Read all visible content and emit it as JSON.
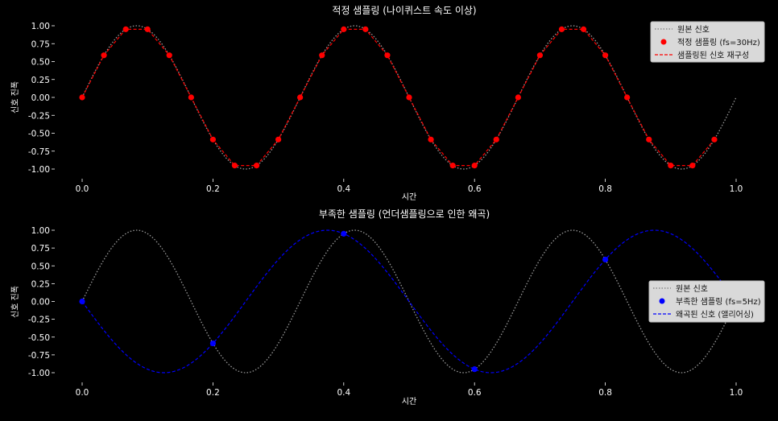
{
  "chart_data": [
    {
      "type": "line",
      "title": "적정 샘플링 (나이퀴스트 속도 이상)",
      "xlabel": "시간",
      "ylabel": "신호 진폭",
      "xlim": [
        -0.05,
        1.0
      ],
      "ylim": [
        -1.1,
        1.1
      ],
      "xticks": [
        "0.0",
        "0.2",
        "0.4",
        "0.6",
        "0.8",
        "1.0"
      ],
      "yticks": [
        "1.00",
        "0.75",
        "0.50",
        "0.25",
        "0.00",
        "-0.25",
        "-0.50",
        "-0.75",
        "-1.00"
      ],
      "grid": false,
      "legend_position": "top-right",
      "series": [
        {
          "name": "원본 신호",
          "style": "dotted",
          "color": "#9a9a9a",
          "function": "sin(2*pi*3*t)",
          "x": [
            0.0,
            1.0
          ]
        },
        {
          "name": "적정 샘플링 (fs=30Hz)",
          "style": "markers",
          "color": "#ff0000",
          "x": [
            0.0,
            0.0333,
            0.0667,
            0.1,
            0.1333,
            0.1667,
            0.2,
            0.2333,
            0.2667,
            0.3,
            0.3333,
            0.3667,
            0.4,
            0.4333,
            0.4667,
            0.5,
            0.5333,
            0.5667,
            0.6,
            0.6333,
            0.6667,
            0.7,
            0.7333,
            0.7667,
            0.8,
            0.8333,
            0.8667,
            0.9,
            0.9333,
            0.9667
          ],
          "y": [
            0.0,
            0.588,
            0.951,
            0.951,
            0.588,
            0.0,
            -0.588,
            -0.951,
            -0.951,
            -0.588,
            0.0,
            0.588,
            0.951,
            0.951,
            0.588,
            0.0,
            -0.588,
            -0.951,
            -0.951,
            -0.588,
            0.0,
            0.588,
            0.951,
            0.951,
            0.588,
            0.0,
            -0.588,
            -0.951,
            -0.951,
            -0.588
          ]
        },
        {
          "name": "샘플링된 신호 재구성",
          "style": "dashed",
          "color": "#ff0000",
          "connects": "적정 샘플링 (fs=30Hz)"
        }
      ]
    },
    {
      "type": "line",
      "title": "부족한 샘플링 (언더샘플링으로 인한 왜곡)",
      "xlabel": "시간",
      "ylabel": "신호 진폭",
      "xlim": [
        -0.05,
        1.0
      ],
      "ylim": [
        -1.1,
        1.1
      ],
      "xticks": [
        "0.0",
        "0.2",
        "0.4",
        "0.6",
        "0.8",
        "1.0"
      ],
      "yticks": [
        "1.00",
        "0.75",
        "0.50",
        "0.25",
        "0.00",
        "-0.25",
        "-0.50",
        "-0.75",
        "-1.00"
      ],
      "grid": false,
      "legend_position": "center-right",
      "series": [
        {
          "name": "원본 신호",
          "style": "dotted",
          "color": "#9a9a9a",
          "function": "sin(2*pi*3*t)",
          "x": [
            0.0,
            1.0
          ]
        },
        {
          "name": "부족한 샘플링 (fs=5Hz)",
          "style": "markers",
          "color": "#0000ff",
          "x": [
            0.0,
            0.2,
            0.4,
            0.6,
            0.8
          ],
          "y": [
            0.0,
            -0.588,
            0.951,
            -0.951,
            0.588
          ]
        },
        {
          "name": "왜곡된 신호 (앨리어싱)",
          "style": "dashed",
          "color": "#0000ff",
          "function": "-sin(2*pi*2*t)",
          "x": [
            0.0,
            1.0
          ]
        }
      ]
    }
  ]
}
